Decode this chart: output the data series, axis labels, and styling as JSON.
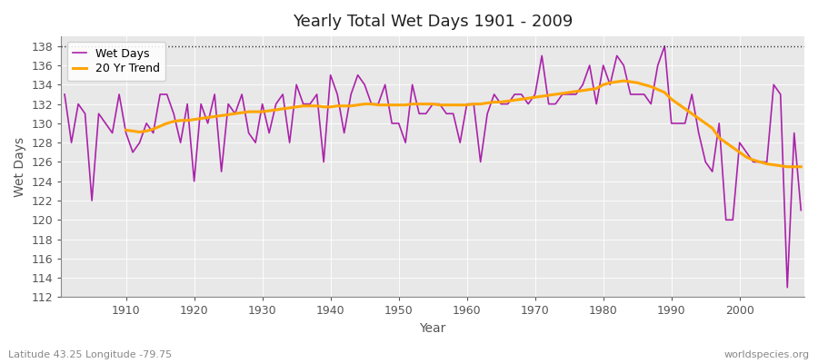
{
  "title": "Yearly Total Wet Days 1901 - 2009",
  "xlabel": "Year",
  "ylabel": "Wet Days",
  "subtitle_left": "Latitude 43.25 Longitude -79.75",
  "subtitle_right": "worldspecies.org",
  "wet_days_color": "#AA22AA",
  "trend_color": "#FFA500",
  "background_color": "#FFFFFF",
  "plot_bg_color": "#E8E8E8",
  "ylim": [
    112,
    139
  ],
  "yticks": [
    112,
    114,
    116,
    118,
    120,
    122,
    124,
    126,
    128,
    130,
    132,
    134,
    136,
    138
  ],
  "xticks": [
    1910,
    1920,
    1930,
    1940,
    1950,
    1960,
    1970,
    1980,
    1990,
    2000
  ],
  "years": [
    1901,
    1902,
    1903,
    1904,
    1905,
    1906,
    1907,
    1908,
    1909,
    1910,
    1911,
    1912,
    1913,
    1914,
    1915,
    1916,
    1917,
    1918,
    1919,
    1920,
    1921,
    1922,
    1923,
    1924,
    1925,
    1926,
    1927,
    1928,
    1929,
    1930,
    1931,
    1932,
    1933,
    1934,
    1935,
    1936,
    1937,
    1938,
    1939,
    1940,
    1941,
    1942,
    1943,
    1944,
    1945,
    1946,
    1947,
    1948,
    1949,
    1950,
    1951,
    1952,
    1953,
    1954,
    1955,
    1956,
    1957,
    1958,
    1959,
    1960,
    1961,
    1962,
    1963,
    1964,
    1965,
    1966,
    1967,
    1968,
    1969,
    1970,
    1971,
    1972,
    1973,
    1974,
    1975,
    1976,
    1977,
    1978,
    1979,
    1980,
    1981,
    1982,
    1983,
    1984,
    1985,
    1986,
    1987,
    1988,
    1989,
    1990,
    1991,
    1992,
    1993,
    1994,
    1995,
    1996,
    1997,
    1998,
    1999,
    2000,
    2001,
    2002,
    2003,
    2004,
    2005,
    2006,
    2007,
    2008,
    2009
  ],
  "wet_days": [
    133,
    128,
    132,
    131,
    122,
    131,
    130,
    129,
    133,
    129,
    127,
    128,
    130,
    129,
    133,
    133,
    131,
    128,
    132,
    124,
    132,
    130,
    133,
    125,
    132,
    131,
    133,
    129,
    128,
    132,
    129,
    132,
    133,
    128,
    134,
    132,
    132,
    133,
    126,
    135,
    133,
    129,
    133,
    135,
    134,
    132,
    132,
    134,
    130,
    130,
    128,
    134,
    131,
    131,
    132,
    132,
    131,
    131,
    128,
    132,
    132,
    126,
    131,
    133,
    132,
    132,
    133,
    133,
    132,
    133,
    137,
    132,
    132,
    133,
    133,
    133,
    134,
    136,
    132,
    136,
    134,
    137,
    136,
    133,
    133,
    133,
    132,
    136,
    138,
    130,
    130,
    130,
    133,
    129,
    126,
    125,
    130,
    120,
    120,
    128,
    127,
    126,
    126,
    126,
    134,
    133,
    113,
    129,
    121
  ],
  "trend_20yr_x": [
    1910,
    1911,
    1912,
    1913,
    1914,
    1915,
    1916,
    1917,
    1918,
    1919,
    1920,
    1921,
    1922,
    1923,
    1924,
    1925,
    1926,
    1927,
    1928,
    1929,
    1930,
    1931,
    1932,
    1933,
    1934,
    1935,
    1936,
    1937,
    1938,
    1939,
    1940,
    1941,
    1942,
    1943,
    1944,
    1945,
    1946,
    1947,
    1948,
    1949,
    1950,
    1951,
    1952,
    1953,
    1954,
    1955,
    1956,
    1957,
    1958,
    1959,
    1960,
    1961,
    1962,
    1963,
    1964,
    1965,
    1966,
    1967,
    1968,
    1969,
    1970,
    1971,
    1972,
    1973,
    1974,
    1975,
    1976,
    1977,
    1978,
    1979,
    1980,
    1981,
    1982,
    1983,
    1984,
    1985,
    1986,
    1987,
    1988,
    1989,
    1990,
    1991,
    1992,
    1993,
    1994,
    1995,
    1996,
    1997,
    1998,
    1999,
    2000,
    2001,
    2002,
    2003,
    2004,
    2005,
    2006,
    2007,
    2008,
    2009
  ],
  "trend_20yr_y": [
    129.3,
    129.2,
    129.1,
    129.2,
    129.4,
    129.7,
    130.0,
    130.2,
    130.3,
    130.3,
    130.4,
    130.5,
    130.6,
    130.7,
    130.8,
    130.9,
    131.0,
    131.1,
    131.2,
    131.2,
    131.2,
    131.3,
    131.4,
    131.5,
    131.6,
    131.7,
    131.8,
    131.8,
    131.8,
    131.7,
    131.7,
    131.8,
    131.8,
    131.8,
    131.9,
    132.0,
    132.0,
    131.9,
    131.9,
    131.9,
    131.9,
    131.9,
    132.0,
    132.0,
    132.0,
    132.0,
    131.9,
    131.9,
    131.9,
    131.9,
    131.9,
    132.0,
    132.0,
    132.1,
    132.2,
    132.2,
    132.3,
    132.4,
    132.5,
    132.6,
    132.7,
    132.8,
    132.9,
    133.0,
    133.1,
    133.2,
    133.3,
    133.4,
    133.5,
    133.6,
    134.0,
    134.2,
    134.3,
    134.4,
    134.3,
    134.2,
    134.0,
    133.8,
    133.5,
    133.2,
    132.5,
    132.0,
    131.5,
    131.0,
    130.5,
    130.0,
    129.5,
    128.5,
    128.0,
    127.5,
    127.0,
    126.5,
    126.2,
    126.0,
    125.8,
    125.7,
    125.6,
    125.5,
    125.5,
    125.5
  ]
}
